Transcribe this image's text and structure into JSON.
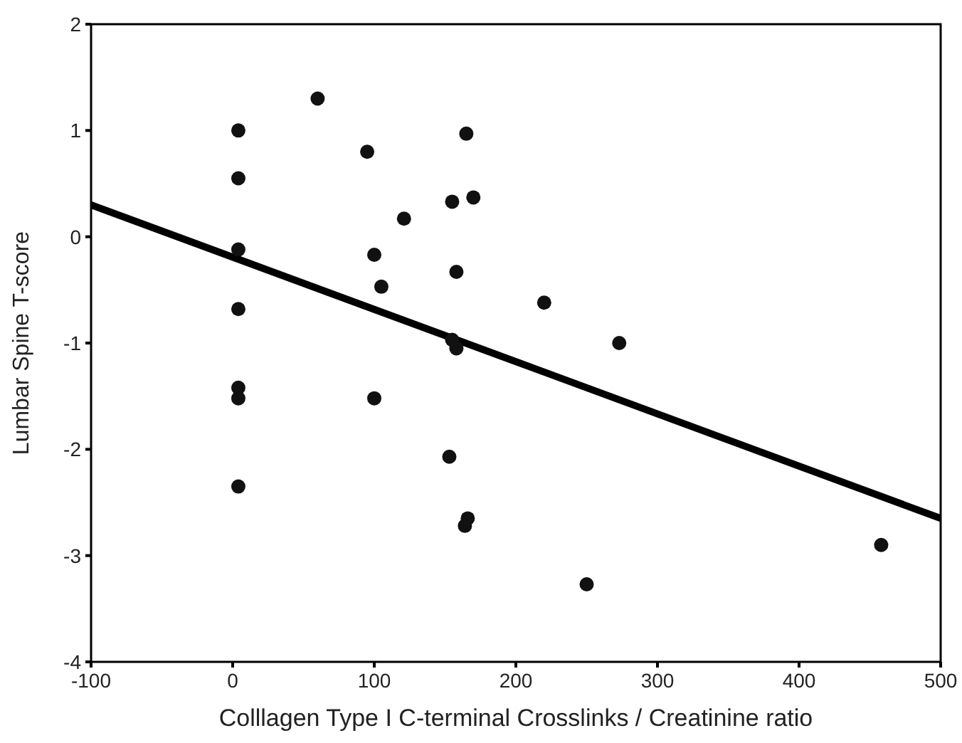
{
  "chart_data": {
    "type": "scatter",
    "xlabel": "Colllagen Type I C-terminal Crosslinks / Creatinine ratio",
    "ylabel": "Lumbar Spine T-score",
    "xlim": [
      -100,
      500
    ],
    "xticks": [
      -100,
      0,
      100,
      200,
      300,
      400,
      500
    ],
    "ylim": [
      -4,
      2
    ],
    "yticks": [
      -4,
      -3,
      -2,
      -1,
      0,
      1,
      2
    ],
    "series": [
      {
        "marker": "circle",
        "color": "#111111",
        "x": [
          4,
          4,
          4,
          4,
          4,
          4,
          4,
          60,
          95,
          100,
          105,
          100,
          121,
          155,
          170,
          165,
          158,
          155,
          158,
          153,
          166,
          164,
          220,
          273,
          250,
          458
        ],
        "values": [
          1.0,
          0.55,
          -0.12,
          -0.68,
          -1.42,
          -1.52,
          -2.35,
          1.3,
          0.8,
          -0.17,
          -0.47,
          -1.52,
          0.17,
          0.33,
          0.37,
          0.97,
          -0.33,
          -0.97,
          -1.05,
          -2.07,
          -2.65,
          -2.72,
          -0.62,
          -1.0,
          -3.27,
          -2.9
        ]
      },
      {
        "type": "line",
        "marker": "none",
        "color": "#000000",
        "x": [
          -100,
          500
        ],
        "values": [
          0.3,
          -2.65
        ]
      }
    ]
  }
}
